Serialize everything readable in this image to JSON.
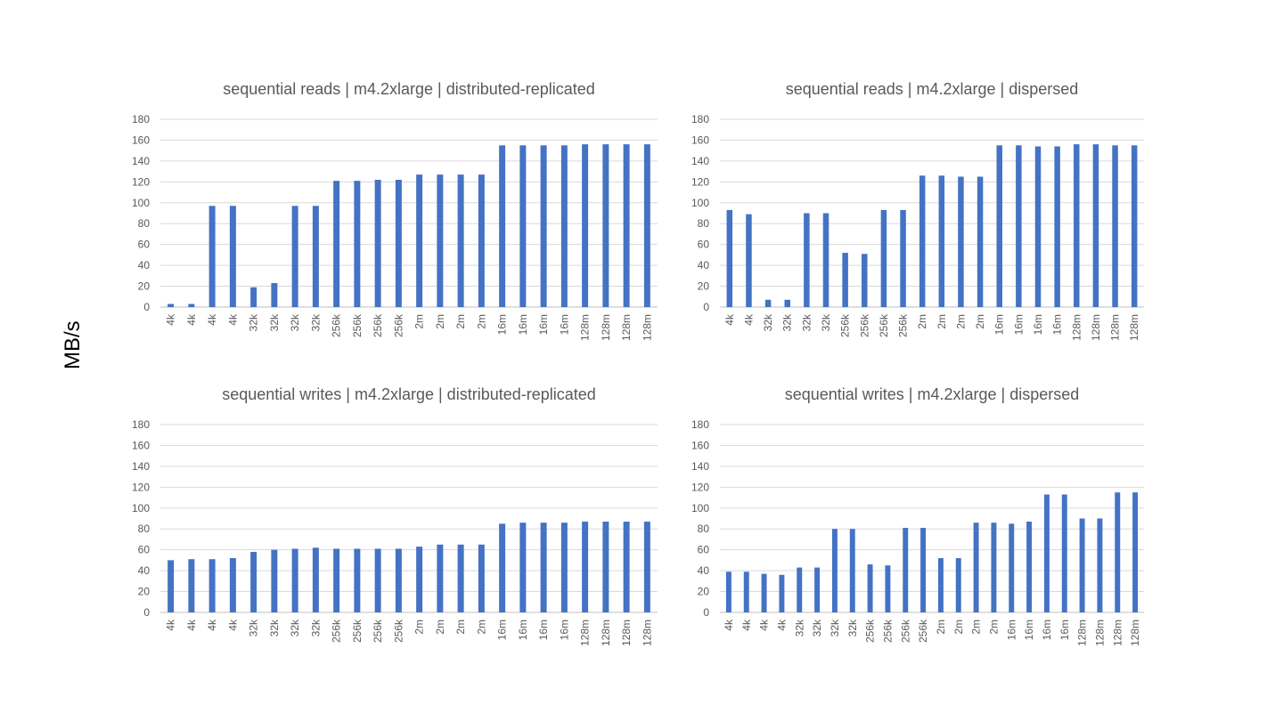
{
  "ylabel": "MB/s",
  "colors": {
    "bar": "#4472C4",
    "grid": "#D9D9D9",
    "text": "#595959"
  },
  "chart_data": [
    {
      "type": "bar",
      "title": "sequential reads | m4.2xlarge | distributed-replicated",
      "categories": [
        "4k",
        "4k",
        "4k",
        "4k",
        "32k",
        "32k",
        "32k",
        "32k",
        "256k",
        "256k",
        "256k",
        "256k",
        "2m",
        "2m",
        "2m",
        "2m",
        "16m",
        "16m",
        "16m",
        "16m",
        "128m",
        "128m",
        "128m",
        "128m"
      ],
      "values": [
        3,
        3,
        97,
        97,
        19,
        23,
        97,
        97,
        121,
        121,
        122,
        122,
        127,
        127,
        127,
        127,
        155,
        155,
        155,
        155,
        156,
        156,
        156,
        156
      ],
      "ylim": [
        0,
        180
      ],
      "yticks": [
        0,
        20,
        40,
        60,
        80,
        100,
        120,
        140,
        160,
        180
      ],
      "grid": true
    },
    {
      "type": "bar",
      "title": "sequential reads | m4.2xlarge | dispersed",
      "categories": [
        "4k",
        "4k",
        "32k",
        "32k",
        "32k",
        "32k",
        "256k",
        "256k",
        "256k",
        "256k",
        "2m",
        "2m",
        "2m",
        "2m",
        "16m",
        "16m",
        "16m",
        "16m",
        "128m",
        "128m",
        "128m",
        "128m"
      ],
      "values": [
        93,
        89,
        7,
        7,
        90,
        90,
        52,
        51,
        93,
        93,
        126,
        126,
        125,
        125,
        155,
        155,
        154,
        154,
        156,
        156,
        155,
        155
      ],
      "ylim": [
        0,
        180
      ],
      "yticks": [
        0,
        20,
        40,
        60,
        80,
        100,
        120,
        140,
        160,
        180
      ],
      "grid": true
    },
    {
      "type": "bar",
      "title": "sequential writes | m4.2xlarge | distributed-replicated",
      "categories": [
        "4k",
        "4k",
        "4k",
        "4k",
        "32k",
        "32k",
        "32k",
        "32k",
        "256k",
        "256k",
        "256k",
        "256k",
        "2m",
        "2m",
        "2m",
        "2m",
        "16m",
        "16m",
        "16m",
        "16m",
        "128m",
        "128m",
        "128m",
        "128m"
      ],
      "values": [
        50,
        51,
        51,
        52,
        58,
        60,
        61,
        62,
        61,
        61,
        61,
        61,
        63,
        65,
        65,
        65,
        85,
        86,
        86,
        86,
        87,
        87,
        87,
        87
      ],
      "ylim": [
        0,
        180
      ],
      "yticks": [
        0,
        20,
        40,
        60,
        80,
        100,
        120,
        140,
        160,
        180
      ],
      "grid": true
    },
    {
      "type": "bar",
      "title": "sequential writes | m4.2xlarge | dispersed",
      "categories": [
        "4k",
        "4k",
        "4k",
        "4k",
        "32k",
        "32k",
        "32k",
        "32k",
        "256k",
        "256k",
        "256k",
        "256k",
        "2m",
        "2m",
        "2m",
        "2m",
        "16m",
        "16m",
        "16m",
        "16m",
        "128m",
        "128m",
        "128m",
        "128m"
      ],
      "values": [
        39,
        39,
        37,
        36,
        43,
        43,
        80,
        80,
        46,
        45,
        81,
        81,
        52,
        52,
        86,
        86,
        85,
        87,
        113,
        113,
        90,
        90,
        115,
        115
      ],
      "ylim": [
        0,
        180
      ],
      "yticks": [
        0,
        20,
        40,
        60,
        80,
        100,
        120,
        140,
        160,
        180
      ],
      "grid": true
    }
  ]
}
